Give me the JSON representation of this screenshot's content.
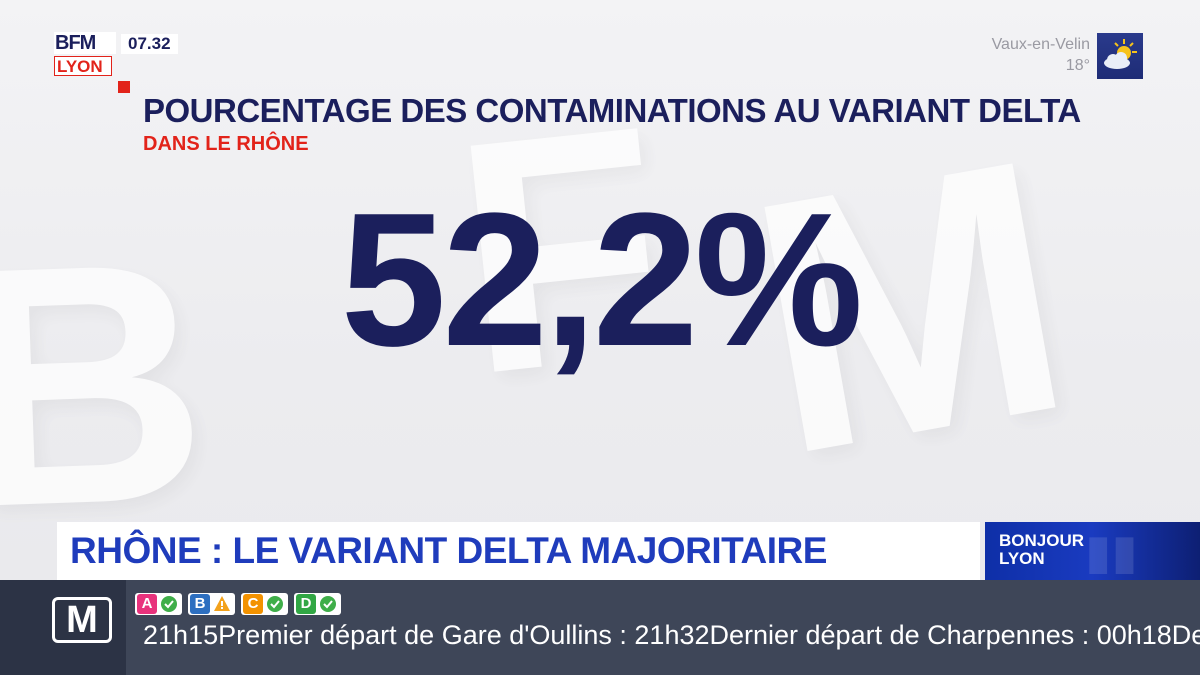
{
  "channel": {
    "logo_top": "BFM",
    "logo_bottom": "LYON",
    "time": "07.32"
  },
  "weather": {
    "city": "Vaux-en-Velin",
    "temperature": "18°",
    "icon": "sun-cloud-icon"
  },
  "infographic": {
    "title": "POURCENTAGE DES CONTAMINATIONS AU VARIANT DELTA",
    "subtitle": "DANS LE RHÔNE",
    "value": "52,2%"
  },
  "headline": {
    "text": "RHÔNE : LE VARIANT DELTA MAJORITAIRE"
  },
  "show": {
    "name": "BONJOUR LYON"
  },
  "ticker": {
    "logo": "M",
    "lines": [
      {
        "letter": "A",
        "color": "#e8327c",
        "status_icon": "check-icon",
        "status_color": "#3fae49"
      },
      {
        "letter": "B",
        "color": "#2d6fc0",
        "status_icon": "warning-icon",
        "status_color": "#f3a21c"
      },
      {
        "letter": "C",
        "color": "#f39200",
        "status_icon": "check-icon",
        "status_color": "#3fae49"
      },
      {
        "letter": "D",
        "color": "#31a744",
        "status_icon": "check-icon",
        "status_color": "#3fae49"
      }
    ],
    "text": "21h15Premier départ de Gare d'Oullins : 21h32Dernier départ de Charpennes : 00h18Der"
  },
  "colors": {
    "navy": "#1b1f5c",
    "red": "#e2231a",
    "blue": "#1f3cbc"
  }
}
